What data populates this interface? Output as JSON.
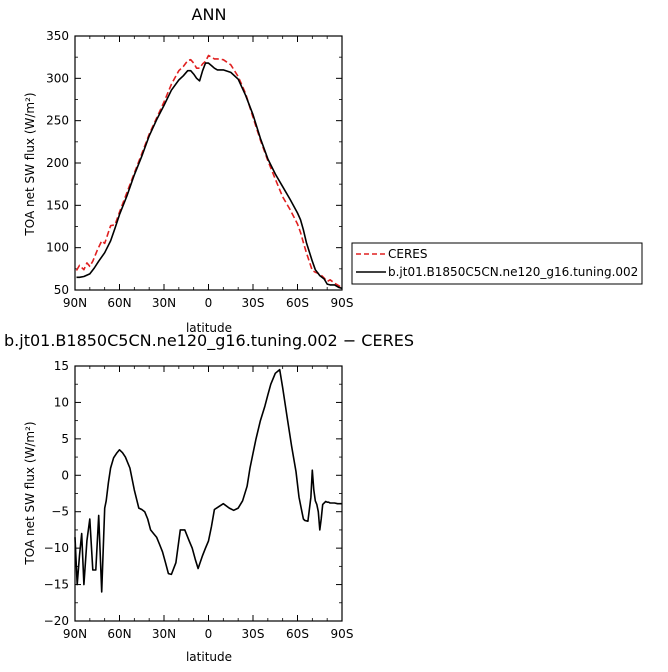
{
  "chart_data": [
    {
      "type": "line",
      "title": "ANN",
      "xlabel": "latitude",
      "ylabel": "TOA net SW flux (W/m²)",
      "xlim": [
        -90,
        90
      ],
      "ylim": [
        50,
        350
      ],
      "x_tick_values": [
        -90,
        -60,
        -30,
        0,
        30,
        60,
        90
      ],
      "x_tick_labels": [
        "90N",
        "60N",
        "30N",
        "0",
        "30S",
        "60S",
        "90S"
      ],
      "y_ticks": [
        50,
        100,
        150,
        200,
        250,
        300,
        350
      ],
      "legend_position": "right",
      "series": [
        {
          "name": "CERES",
          "color": "#e02020",
          "dash": "dashed",
          "x": [
            -89,
            -87,
            -84,
            -82,
            -80,
            -78,
            -75,
            -72,
            -70,
            -66,
            -63,
            -60,
            -55,
            -50,
            -45,
            -40,
            -35,
            -30,
            -25,
            -20,
            -17,
            -14,
            -12,
            -10,
            -8,
            -6,
            -4,
            -2,
            0,
            2,
            4,
            6,
            10,
            15,
            20,
            25,
            30,
            35,
            40,
            45,
            50,
            55,
            60,
            62,
            64,
            66,
            70,
            72,
            75,
            78,
            80,
            82,
            85,
            88,
            90
          ],
          "y": [
            73,
            79,
            74,
            82,
            78,
            84,
            97,
            108,
            105,
            126,
            127,
            142,
            165,
            188,
            211,
            234,
            253,
            272,
            293,
            309,
            314,
            321,
            322,
            318,
            312,
            312,
            317,
            320,
            327,
            325,
            323,
            323,
            322,
            316,
            302,
            282,
            254,
            227,
            203,
            181,
            160,
            145,
            128,
            118,
            106,
            94,
            73,
            71,
            69,
            64,
            60,
            62,
            58,
            55,
            52
          ]
        },
        {
          "name": "b.jt01.B1850C5CN.ne120_g16.tuning.002",
          "color": "#000000",
          "dash": "solid",
          "x": [
            -89,
            -87,
            -84,
            -80,
            -77,
            -74,
            -70,
            -66,
            -63,
            -60,
            -55,
            -50,
            -45,
            -40,
            -35,
            -30,
            -25,
            -20,
            -17,
            -14,
            -12,
            -10,
            -8,
            -6,
            -4,
            -2,
            0,
            2,
            4,
            6,
            10,
            15,
            20,
            25,
            30,
            35,
            40,
            45,
            50,
            55,
            60,
            62,
            64,
            66,
            70,
            72,
            75,
            78,
            80,
            82,
            85,
            88,
            90
          ],
          "y": [
            65,
            65,
            66,
            69,
            76,
            84,
            94,
            108,
            123,
            139,
            161,
            186,
            208,
            232,
            251,
            268,
            286,
            298,
            303,
            309,
            309,
            305,
            300,
            297,
            309,
            318,
            318,
            315,
            312,
            310,
            310,
            307,
            299,
            280,
            257,
            229,
            205,
            187,
            172,
            157,
            141,
            133,
            121,
            106,
            84,
            74,
            67,
            63,
            57,
            56,
            56,
            53,
            52
          ]
        }
      ]
    },
    {
      "type": "line",
      "title": "b.jt01.B1850C5CN.ne120_g16.tuning.002 − CERES",
      "xlabel": "latitude",
      "ylabel": "TOA net SW flux (W/m²)",
      "xlim": [
        -90,
        90
      ],
      "ylim": [
        -20,
        15
      ],
      "x_tick_values": [
        -90,
        -60,
        -30,
        0,
        30,
        60,
        90
      ],
      "x_tick_labels": [
        "90N",
        "60N",
        "30N",
        "0",
        "30S",
        "60S",
        "90S"
      ],
      "y_ticks": [
        -20,
        -15,
        -10,
        -5,
        0,
        5,
        10,
        15
      ],
      "series": [
        {
          "color": "#000000",
          "dash": "solid",
          "x": [
            -90,
            -88.5,
            -87,
            -85.5,
            -84,
            -82,
            -80,
            -78,
            -76,
            -74,
            -72,
            -70,
            -69,
            -67.5,
            -66,
            -64,
            -62,
            -60,
            -58,
            -56,
            -53,
            -50,
            -47,
            -45,
            -43,
            -41,
            -39,
            -37,
            -35,
            -33,
            -31,
            -29,
            -27,
            -25,
            -22,
            -19,
            -16,
            -13,
            -11,
            -9,
            -7,
            -4,
            -2,
            0,
            2,
            4,
            7,
            10,
            14,
            17,
            20,
            23,
            26,
            28,
            30,
            32,
            35,
            38,
            40,
            42,
            45,
            48,
            50,
            53,
            56,
            59,
            61,
            63,
            64,
            65,
            67,
            69,
            70,
            71,
            72,
            73,
            74,
            75,
            76,
            77,
            79,
            80,
            81,
            82,
            83,
            85,
            87,
            90
          ],
          "y": [
            -8.5,
            -15,
            -11,
            -8,
            -15,
            -9,
            -6,
            -13,
            -13,
            -5.5,
            -16,
            -4.5,
            -3.5,
            -1,
            1,
            2.4,
            3,
            3.5,
            3.1,
            2.5,
            1,
            -2,
            -4.5,
            -4.7,
            -5,
            -6,
            -7.5,
            -8,
            -8.5,
            -9.5,
            -10.5,
            -12,
            -13.5,
            -13.6,
            -12,
            -7.5,
            -7.5,
            -9,
            -10,
            -11.5,
            -12.8,
            -11,
            -10,
            -9,
            -7,
            -4.7,
            -4.3,
            -3.9,
            -4.5,
            -4.8,
            -4.5,
            -3.5,
            -1.5,
            1,
            3,
            5,
            7.5,
            9.5,
            11,
            12.5,
            14,
            14.5,
            12,
            8,
            4,
            0.5,
            -3,
            -5,
            -6,
            -6.2,
            -6.3,
            -3,
            0.7,
            -2,
            -3.5,
            -4,
            -5,
            -7.5,
            -6,
            -4,
            -3.6,
            -3.7,
            -3.7,
            -3.8,
            -3.8,
            -3.8,
            -3.9,
            -3.9
          ]
        }
      ]
    }
  ]
}
